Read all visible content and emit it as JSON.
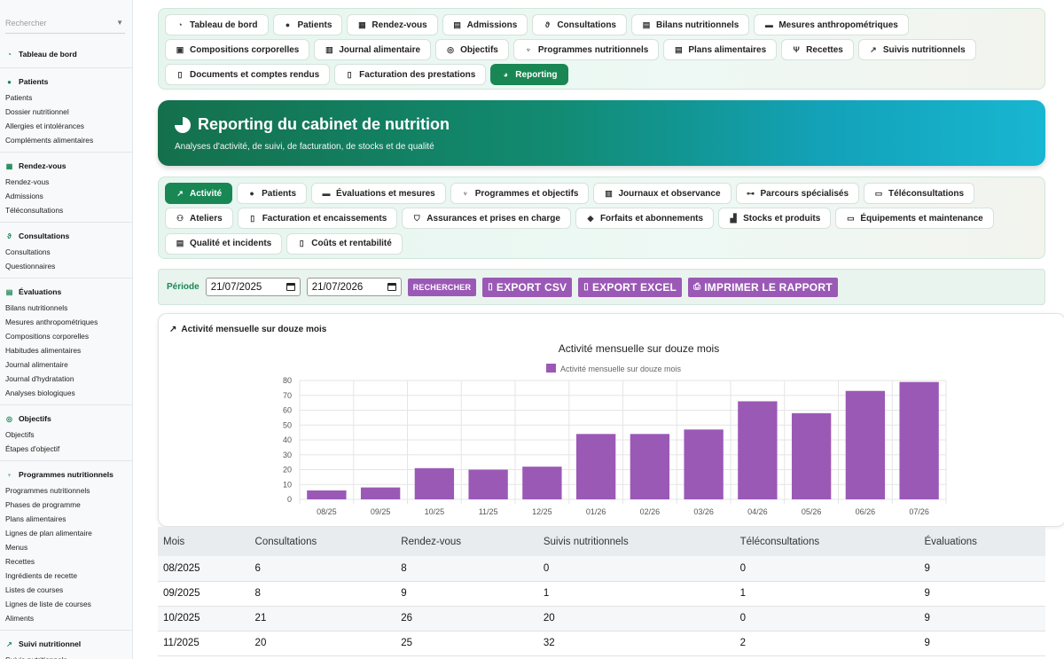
{
  "sidebar": {
    "search_placeholder": "Rechercher",
    "groups": [
      {
        "title": "Tableau de bord",
        "icon": "gauge-icon",
        "items": []
      },
      {
        "title": "Patients",
        "icon": "user-icon",
        "items": [
          "Patients",
          "Dossier nutritionnel",
          "Allergies et intolérances",
          "Compléments alimentaires"
        ]
      },
      {
        "title": "Rendez-vous",
        "icon": "calendar-icon",
        "items": [
          "Rendez-vous",
          "Admissions",
          "Téléconsultations"
        ]
      },
      {
        "title": "Consultations",
        "icon": "stethoscope-icon",
        "items": [
          "Consultations",
          "Questionnaires"
        ]
      },
      {
        "title": "Évaluations",
        "icon": "clipboard-icon",
        "items": [
          "Bilans nutritionnels",
          "Mesures anthropométriques",
          "Compositions corporelles",
          "Habitudes alimentaires",
          "Journal alimentaire",
          "Journal d'hydratation",
          "Analyses biologiques"
        ]
      },
      {
        "title": "Objectifs",
        "icon": "target-icon",
        "items": [
          "Objectifs",
          "Étapes d'objectif"
        ]
      },
      {
        "title": "Programmes nutritionnels",
        "icon": "seedling-icon",
        "items": [
          "Programmes nutritionnels",
          "Phases de programme",
          "Plans alimentaires",
          "Lignes de plan alimentaire",
          "Menus",
          "Recettes",
          "Ingrédients de recette",
          "Listes de courses",
          "Lignes de liste de courses",
          "Aliments"
        ]
      },
      {
        "title": "Suivi nutritionnel",
        "icon": "chart-icon",
        "items": [
          "Suivis nutritionnels"
        ]
      }
    ]
  },
  "topnav": [
    {
      "label": "Tableau de bord",
      "icon": "gauge-icon",
      "glyph": "◔",
      "active": false
    },
    {
      "label": "Patients",
      "icon": "user-icon",
      "glyph": "●",
      "active": false
    },
    {
      "label": "Rendez-vous",
      "icon": "calendar-icon",
      "glyph": "▦",
      "active": false
    },
    {
      "label": "Admissions",
      "icon": "clipboard-check-icon",
      "glyph": "▤",
      "active": false
    },
    {
      "label": "Consultations",
      "icon": "stethoscope-icon",
      "glyph": "ϑ",
      "active": false
    },
    {
      "label": "Bilans nutritionnels",
      "icon": "clipboard-icon",
      "glyph": "▤",
      "active": false
    },
    {
      "label": "Mesures anthropométriques",
      "icon": "ruler-icon",
      "glyph": "▬",
      "active": false
    },
    {
      "label": "Compositions corporelles",
      "icon": "scale-icon",
      "glyph": "▣",
      "active": false
    },
    {
      "label": "Journal alimentaire",
      "icon": "book-icon",
      "glyph": "▥",
      "active": false
    },
    {
      "label": "Objectifs",
      "icon": "target-icon",
      "glyph": "◎",
      "active": false
    },
    {
      "label": "Programmes nutritionnels",
      "icon": "seedling-icon",
      "glyph": "♆",
      "active": false
    },
    {
      "label": "Plans alimentaires",
      "icon": "clipboard-list-icon",
      "glyph": "▤",
      "active": false
    },
    {
      "label": "Recettes",
      "icon": "utensils-icon",
      "glyph": "Ψ",
      "active": false
    },
    {
      "label": "Suivis nutritionnels",
      "icon": "chart-line-icon",
      "glyph": "↗",
      "active": false
    },
    {
      "label": "Documents et comptes rendus",
      "icon": "file-icon",
      "glyph": "▯",
      "active": false
    },
    {
      "label": "Facturation des prestations",
      "icon": "invoice-icon",
      "glyph": "▯",
      "active": false
    },
    {
      "label": "Reporting",
      "icon": "pie-chart-icon",
      "glyph": "◕",
      "active": true
    }
  ],
  "hero": {
    "title": "Reporting du cabinet de nutrition",
    "subtitle": "Analyses d'activité, de suivi, de facturation, de stocks et de qualité"
  },
  "subnav": [
    {
      "label": "Activité",
      "icon": "chart-line-icon",
      "glyph": "↗",
      "active": true
    },
    {
      "label": "Patients",
      "icon": "user-icon",
      "glyph": "●",
      "active": false
    },
    {
      "label": "Évaluations et mesures",
      "icon": "ruler-icon",
      "glyph": "▬",
      "active": false
    },
    {
      "label": "Programmes et objectifs",
      "icon": "seedling-icon",
      "glyph": "♆",
      "active": false
    },
    {
      "label": "Journaux et observance",
      "icon": "book-icon",
      "glyph": "▥",
      "active": false
    },
    {
      "label": "Parcours spécialisés",
      "icon": "sitemap-icon",
      "glyph": "⊶",
      "active": false
    },
    {
      "label": "Téléconsultations",
      "icon": "laptop-icon",
      "glyph": "▭",
      "active": false
    },
    {
      "label": "Ateliers",
      "icon": "users-icon",
      "glyph": "⚇",
      "active": false
    },
    {
      "label": "Facturation et encaissements",
      "icon": "invoice-icon",
      "glyph": "▯",
      "active": false
    },
    {
      "label": "Assurances et prises en charge",
      "icon": "shield-icon",
      "glyph": "⛉",
      "active": false
    },
    {
      "label": "Forfaits et abonnements",
      "icon": "tags-icon",
      "glyph": "◆",
      "active": false
    },
    {
      "label": "Stocks et produits",
      "icon": "boxes-icon",
      "glyph": "▟",
      "active": false
    },
    {
      "label": "Équipements et maintenance",
      "icon": "desktop-icon",
      "glyph": "▭",
      "active": false
    },
    {
      "label": "Qualité et incidents",
      "icon": "clipboard-check-icon",
      "glyph": "▤",
      "active": false
    },
    {
      "label": "Coûts et rentabilité",
      "icon": "receipt-icon",
      "glyph": "▯",
      "active": false
    }
  ],
  "filters": {
    "period_label": "Période",
    "date_from": "21/07/2025",
    "date_to": "21/07/2026",
    "search_label": "RECHERCHER",
    "export_csv": "EXPORT CSV",
    "export_excel": "EXPORT EXCEL",
    "print": "IMPRIMER LE RAPPORT"
  },
  "chart_card": {
    "heading": "Activité mensuelle sur douze mois"
  },
  "chart_data": {
    "type": "bar",
    "title": "Activité mensuelle sur douze mois",
    "legend_position": "top",
    "categories": [
      "08/25",
      "09/25",
      "10/25",
      "11/25",
      "12/25",
      "01/26",
      "02/26",
      "03/26",
      "04/26",
      "05/26",
      "06/26",
      "07/26"
    ],
    "series": [
      {
        "name": "Activité mensuelle sur douze mois",
        "color": "#9b59b6",
        "values": [
          6,
          8,
          21,
          20,
          22,
          44,
          44,
          47,
          66,
          58,
          73,
          79
        ]
      }
    ],
    "ylim": [
      0,
      80
    ],
    "yticks": [
      0,
      10,
      20,
      30,
      40,
      50,
      60,
      70,
      80
    ],
    "grid": true
  },
  "table": {
    "headers": [
      "Mois",
      "Consultations",
      "Rendez-vous",
      "Suivis nutritionnels",
      "Téléconsultations",
      "Évaluations"
    ],
    "rows": [
      [
        "08/2025",
        "6",
        "8",
        "0",
        "0",
        "9"
      ],
      [
        "09/2025",
        "8",
        "9",
        "1",
        "1",
        "9"
      ],
      [
        "10/2025",
        "21",
        "26",
        "20",
        "0",
        "9"
      ],
      [
        "11/2025",
        "20",
        "25",
        "32",
        "2",
        "9"
      ]
    ]
  }
}
